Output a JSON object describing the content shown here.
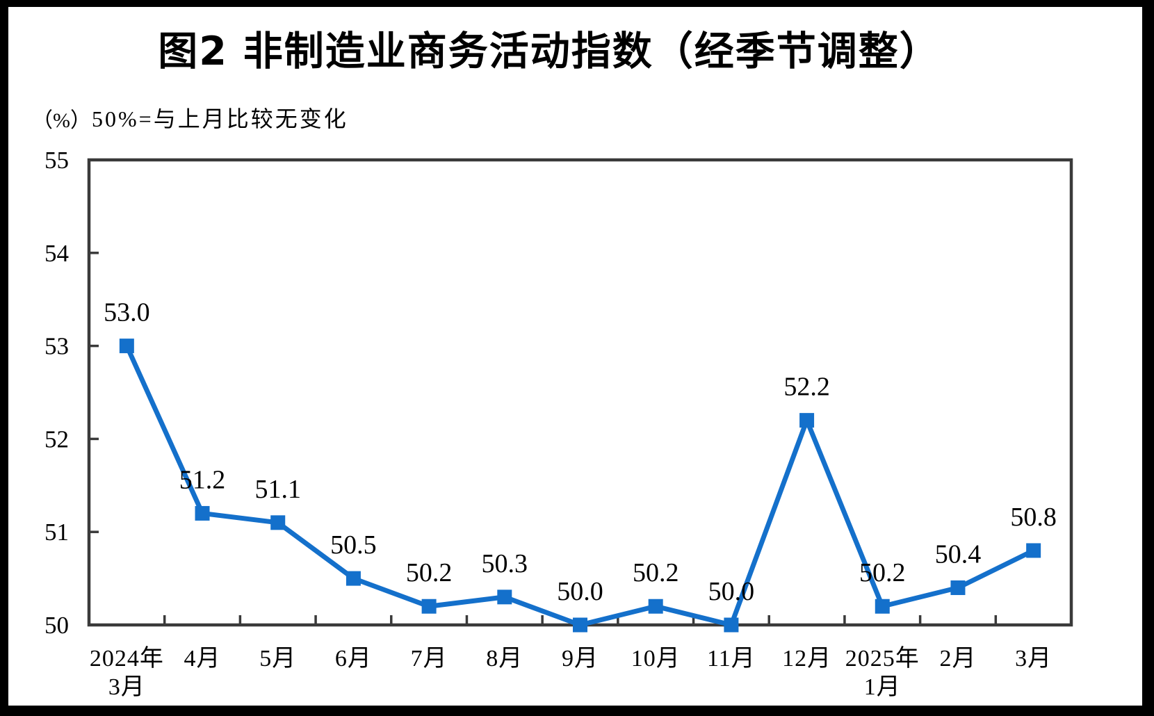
{
  "page": {
    "title": "图2 非制造业商务活动指数（经季节调整）"
  },
  "chart_data": {
    "type": "line",
    "title": "图2 非制造业商务活动指数（经季节调整）",
    "unit_label": "（%）",
    "note": "50%=与上月比较无变化",
    "categories": [
      [
        "2024年",
        "3月"
      ],
      [
        "4月"
      ],
      [
        "5月"
      ],
      [
        "6月"
      ],
      [
        "7月"
      ],
      [
        "8月"
      ],
      [
        "9月"
      ],
      [
        "10月"
      ],
      [
        "11月"
      ],
      [
        "12月"
      ],
      [
        "2025年",
        "1月"
      ],
      [
        "2月"
      ],
      [
        "3月"
      ]
    ],
    "values": [
      53.0,
      51.2,
      51.1,
      50.5,
      50.2,
      50.3,
      50.0,
      50.2,
      50.0,
      52.2,
      50.2,
      50.4,
      50.8
    ],
    "value_labels": [
      "53.0",
      "51.2",
      "51.1",
      "50.5",
      "50.2",
      "50.3",
      "50.0",
      "50.2",
      "50.0",
      "52.2",
      "50.2",
      "50.4",
      "50.8"
    ],
    "yaxis": {
      "min": 50,
      "max": 55,
      "tick_interval": 1,
      "tick_labels": [
        "55",
        "54",
        "53",
        "52",
        "51",
        "50"
      ]
    },
    "grid": false,
    "legend": "none",
    "line_color": "#1470CB",
    "axis_color": "#3A3A3A",
    "frame_color": "#000000",
    "background_color": "#FFFFFF"
  }
}
